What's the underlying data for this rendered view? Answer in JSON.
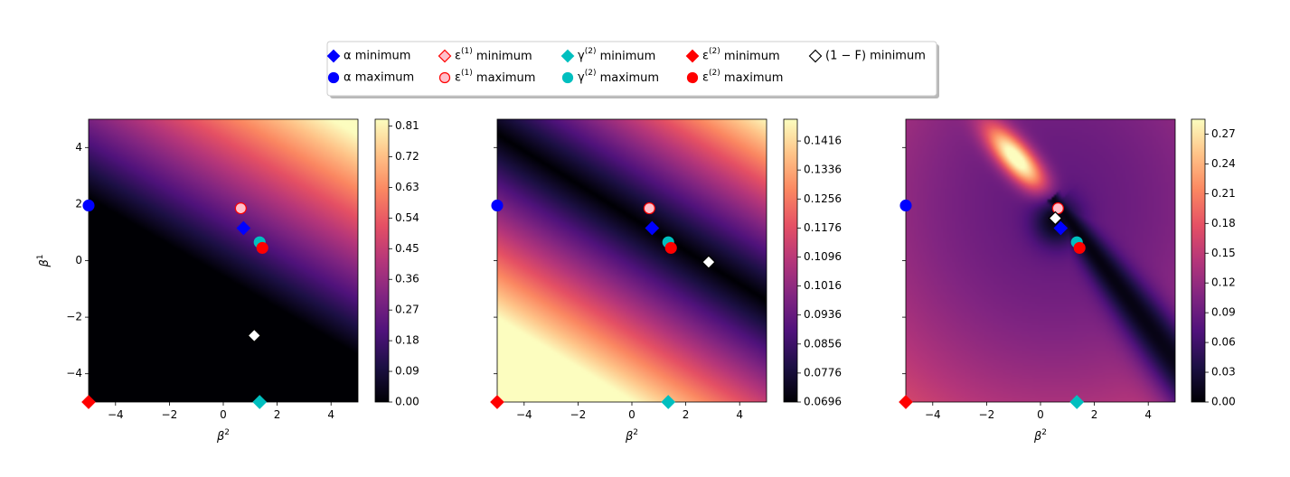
{
  "legend": {
    "placement": "top-center",
    "entries": [
      {
        "key": "alpha_min",
        "label": "α minimum",
        "marker": "diamond",
        "color": "#0000ff",
        "face": "#0000ff"
      },
      {
        "key": "alpha_max",
        "label": "α maximum",
        "marker": "circle",
        "color": "#0000ff",
        "face": "#0000ff"
      },
      {
        "key": "eps1_min",
        "label": "ε(1) minimum",
        "marker": "diamond",
        "color": "#ff0000",
        "face": "#ffc0cb"
      },
      {
        "key": "eps1_max",
        "label": "ε(1) maximum",
        "marker": "circle",
        "color": "#ff0000",
        "face": "#ffc0cb"
      },
      {
        "key": "gamma2_min",
        "label": "γ(2) minimum",
        "marker": "diamond",
        "color": "#00bfbf",
        "face": "#00bfbf"
      },
      {
        "key": "gamma2_max",
        "label": "γ(2) maximum",
        "marker": "circle",
        "color": "#00bfbf",
        "face": "#00bfbf"
      },
      {
        "key": "eps2_min",
        "label": "ε(2) minimum",
        "marker": "diamond",
        "color": "#ff0000",
        "face": "#ff0000"
      },
      {
        "key": "eps2_max",
        "label": "ε(2) maximum",
        "marker": "circle",
        "color": "#ff0000",
        "face": "#ff0000"
      },
      {
        "key": "oneminusF_min",
        "label": "(1 − F) minimum",
        "marker": "diamond",
        "color": "#000000",
        "face": "#ffffff"
      }
    ]
  },
  "chart_data": [
    {
      "type": "heatmap",
      "colormap": "magma",
      "xlabel": "β2",
      "ylabel": "β1",
      "xlim": [
        -5,
        5
      ],
      "ylim": [
        -5,
        5
      ],
      "xticks": [
        "−4",
        "−2",
        "0",
        "2",
        "4"
      ],
      "yticks": [
        "−4",
        "−2",
        "0",
        "2",
        "4"
      ],
      "colorbar": {
        "min": 0.0,
        "max": 0.83,
        "ticks": [
          "0.00",
          "0.09",
          "0.18",
          "0.27",
          "0.36",
          "0.45",
          "0.54",
          "0.63",
          "0.72",
          "0.81"
        ]
      },
      "points": [
        {
          "key": "alpha_max",
          "x": -5.0,
          "y": 1.95
        },
        {
          "key": "eps1_max",
          "x": 0.65,
          "y": 1.85
        },
        {
          "key": "alpha_min",
          "x": 0.75,
          "y": 1.15
        },
        {
          "key": "gamma2_max",
          "x": 1.35,
          "y": 0.65
        },
        {
          "key": "eps2_max",
          "x": 1.45,
          "y": 0.45
        },
        {
          "key": "oneminusF_min",
          "x": 1.15,
          "y": -2.65
        },
        {
          "key": "eps2_min",
          "x": -5.0,
          "y": -5.0
        },
        {
          "key": "gamma2_min",
          "x": 1.35,
          "y": -5.0
        }
      ]
    },
    {
      "type": "heatmap",
      "colormap": "magma",
      "xlabel": "β2",
      "ylabel": "",
      "xlim": [
        -5,
        5
      ],
      "ylim": [
        -5,
        5
      ],
      "xticks": [
        "−4",
        "−2",
        "0",
        "2",
        "4"
      ],
      "yticks": [],
      "colorbar": {
        "min": 0.0696,
        "max": 0.1476,
        "ticks": [
          "0.0696",
          "0.0776",
          "0.0856",
          "0.0936",
          "0.1016",
          "0.1096",
          "0.1176",
          "0.1256",
          "0.1336",
          "0.1416"
        ]
      },
      "points": [
        {
          "key": "alpha_max",
          "x": -5.0,
          "y": 1.95
        },
        {
          "key": "eps1_max",
          "x": 0.65,
          "y": 1.85
        },
        {
          "key": "alpha_min",
          "x": 0.75,
          "y": 1.15
        },
        {
          "key": "gamma2_max",
          "x": 1.35,
          "y": 0.65
        },
        {
          "key": "eps2_max",
          "x": 1.45,
          "y": 0.45
        },
        {
          "key": "oneminusF_min",
          "x": 2.85,
          "y": -0.05
        },
        {
          "key": "eps2_min",
          "x": -5.0,
          "y": -5.0
        },
        {
          "key": "gamma2_min",
          "x": 1.35,
          "y": -5.0
        }
      ]
    },
    {
      "type": "heatmap",
      "colormap": "magma",
      "xlabel": "β2",
      "ylabel": "",
      "xlim": [
        -5,
        5
      ],
      "ylim": [
        -5,
        5
      ],
      "xticks": [
        "−4",
        "−2",
        "0",
        "2",
        "4"
      ],
      "yticks": [],
      "colorbar": {
        "min": 0.0,
        "max": 0.285,
        "ticks": [
          "0.00",
          "0.03",
          "0.06",
          "0.09",
          "0.12",
          "0.15",
          "0.18",
          "0.21",
          "0.24",
          "0.27"
        ]
      },
      "points": [
        {
          "key": "alpha_max",
          "x": -5.0,
          "y": 1.95
        },
        {
          "key": "eps1_max",
          "x": 0.65,
          "y": 1.85
        },
        {
          "key": "oneminusF_min",
          "x": 0.55,
          "y": 1.5
        },
        {
          "key": "alpha_min",
          "x": 0.75,
          "y": 1.15
        },
        {
          "key": "gamma2_max",
          "x": 1.35,
          "y": 0.65
        },
        {
          "key": "eps2_max",
          "x": 1.45,
          "y": 0.45
        },
        {
          "key": "eps2_min",
          "x": -5.0,
          "y": -5.0
        },
        {
          "key": "gamma2_min",
          "x": 1.35,
          "y": -5.0
        }
      ]
    }
  ]
}
